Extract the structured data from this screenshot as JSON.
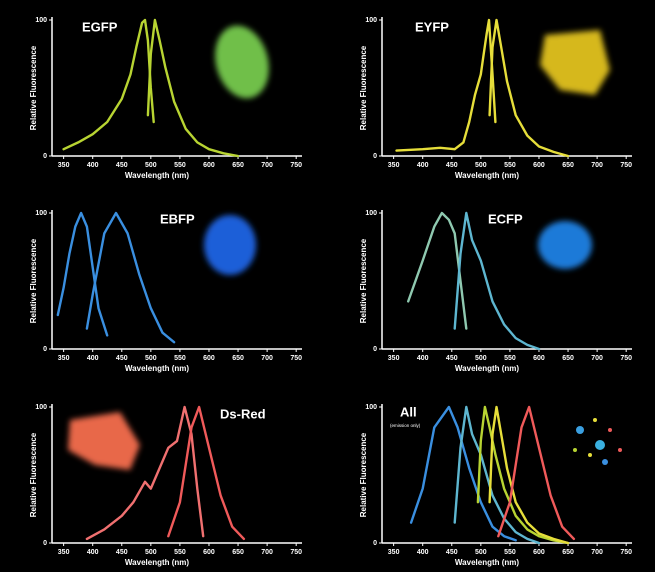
{
  "chart_data": [
    {
      "type": "line",
      "title": "EGFP",
      "xlabel": "Wavelength (nm)",
      "ylabel": "Relative Fluorescence",
      "xlim": [
        330,
        760
      ],
      "ylim": [
        0,
        100
      ],
      "xticks": [
        350,
        400,
        450,
        500,
        550,
        600,
        650,
        700,
        750
      ],
      "yticks": [
        0,
        100
      ],
      "series": [
        {
          "color": "#b8d432",
          "x": [
            350,
            375,
            400,
            425,
            450,
            465,
            475,
            485,
            490,
            495,
            500,
            505
          ],
          "values": [
            5,
            10,
            16,
            25,
            42,
            60,
            80,
            98,
            100,
            85,
            50,
            25
          ]
        },
        {
          "color": "#b8d432",
          "x": [
            495,
            500,
            507,
            515,
            525,
            540,
            560,
            580,
            600,
            625,
            650
          ],
          "values": [
            30,
            75,
            100,
            85,
            65,
            40,
            20,
            10,
            5,
            2,
            0
          ]
        }
      ]
    },
    {
      "type": "line",
      "title": "EYFP",
      "xlabel": "Wavelength (nm)",
      "ylabel": "Relative Fluorescence",
      "xlim": [
        330,
        760
      ],
      "ylim": [
        0,
        100
      ],
      "xticks": [
        350,
        400,
        450,
        500,
        550,
        600,
        650,
        700,
        750
      ],
      "yticks": [
        0,
        100
      ],
      "series": [
        {
          "color": "#e6de3a",
          "x": [
            355,
            400,
            430,
            455,
            470,
            480,
            490,
            500,
            505,
            510,
            514,
            520,
            525
          ],
          "values": [
            4,
            5,
            6,
            5,
            10,
            25,
            45,
            60,
            75,
            90,
            100,
            60,
            25
          ]
        },
        {
          "color": "#e6de3a",
          "x": [
            515,
            520,
            527,
            535,
            545,
            560,
            580,
            600,
            625,
            650
          ],
          "values": [
            30,
            80,
            100,
            80,
            55,
            30,
            15,
            7,
            3,
            0
          ]
        }
      ]
    },
    {
      "type": "line",
      "title": "EBFP",
      "xlabel": "Wavelength (nm)",
      "ylabel": "Relative Fluorescence",
      "xlim": [
        330,
        760
      ],
      "ylim": [
        0,
        100
      ],
      "xticks": [
        350,
        400,
        450,
        500,
        550,
        600,
        650,
        700,
        750
      ],
      "yticks": [
        0,
        100
      ],
      "series": [
        {
          "color": "#3a8fe0",
          "x": [
            340,
            350,
            360,
            370,
            380,
            390,
            400,
            410,
            425
          ],
          "values": [
            25,
            45,
            70,
            90,
            100,
            90,
            60,
            30,
            10
          ]
        },
        {
          "color": "#3a8fe0",
          "x": [
            390,
            400,
            420,
            440,
            460,
            480,
            500,
            520,
            540
          ],
          "values": [
            15,
            40,
            85,
            100,
            85,
            55,
            30,
            12,
            5
          ]
        }
      ]
    },
    {
      "type": "line",
      "title": "ECFP",
      "xlabel": "Wavelength (nm)",
      "ylabel": "Relative Fluorescence",
      "xlim": [
        330,
        760
      ],
      "ylim": [
        0,
        100
      ],
      "xticks": [
        350,
        400,
        450,
        500,
        550,
        600,
        650,
        700,
        750
      ],
      "yticks": [
        0,
        100
      ],
      "series": [
        {
          "color": "#8fc9b0",
          "x": [
            375,
            400,
            420,
            433,
            445,
            455,
            465,
            475
          ],
          "values": [
            35,
            65,
            90,
            100,
            95,
            85,
            50,
            15
          ]
        },
        {
          "color": "#5eb6d0",
          "x": [
            455,
            465,
            475,
            485,
            500,
            520,
            540,
            560,
            580,
            600
          ],
          "values": [
            15,
            70,
            100,
            80,
            65,
            35,
            18,
            8,
            3,
            0
          ]
        }
      ]
    },
    {
      "type": "line",
      "title": "Ds-Red",
      "xlabel": "Wavelength (nm)",
      "ylabel": "Relative Fluorescence",
      "xlim": [
        330,
        760
      ],
      "ylim": [
        0,
        100
      ],
      "xticks": [
        350,
        400,
        450,
        500,
        550,
        600,
        650,
        700,
        750
      ],
      "yticks": [
        0,
        100
      ],
      "series": [
        {
          "color": "#f07070",
          "x": [
            390,
            420,
            450,
            470,
            490,
            500,
            520,
            530,
            545,
            558,
            570,
            580,
            590
          ],
          "values": [
            3,
            10,
            20,
            30,
            45,
            40,
            60,
            70,
            75,
            100,
            80,
            40,
            5
          ]
        },
        {
          "color": "#f05a5a",
          "x": [
            530,
            550,
            570,
            583,
            600,
            620,
            640,
            660
          ],
          "values": [
            5,
            30,
            85,
            100,
            70,
            35,
            12,
            3
          ]
        }
      ]
    },
    {
      "type": "line",
      "title": "All",
      "annotation": "(emission only)",
      "xlabel": "Wavelength (nm)",
      "ylabel": "Relative Fluorescence",
      "xlim": [
        330,
        760
      ],
      "ylim": [
        0,
        100
      ],
      "xticks": [
        350,
        400,
        450,
        500,
        550,
        600,
        650,
        700,
        750
      ],
      "yticks": [
        0,
        100
      ],
      "series": [
        {
          "color": "#3a8fe0",
          "x": [
            380,
            400,
            420,
            445,
            460,
            480,
            500,
            520,
            540,
            560
          ],
          "values": [
            15,
            40,
            85,
            100,
            85,
            55,
            30,
            12,
            5,
            2
          ]
        },
        {
          "color": "#5eb6d0",
          "x": [
            455,
            465,
            475,
            485,
            500,
            520,
            540,
            560,
            580,
            600
          ],
          "values": [
            15,
            70,
            100,
            80,
            65,
            35,
            18,
            8,
            3,
            0
          ]
        },
        {
          "color": "#b8d432",
          "x": [
            495,
            500,
            507,
            515,
            525,
            540,
            560,
            580,
            600,
            625,
            650
          ],
          "values": [
            30,
            75,
            100,
            85,
            65,
            40,
            20,
            10,
            5,
            2,
            0
          ]
        },
        {
          "color": "#e6de3a",
          "x": [
            515,
            520,
            527,
            535,
            545,
            560,
            580,
            600,
            625,
            650
          ],
          "values": [
            30,
            80,
            100,
            80,
            55,
            30,
            15,
            7,
            3,
            0
          ]
        },
        {
          "color": "#f05a5a",
          "x": [
            530,
            550,
            570,
            583,
            600,
            620,
            640,
            660
          ],
          "values": [
            5,
            30,
            85,
            100,
            70,
            35,
            12,
            3
          ]
        }
      ]
    }
  ]
}
